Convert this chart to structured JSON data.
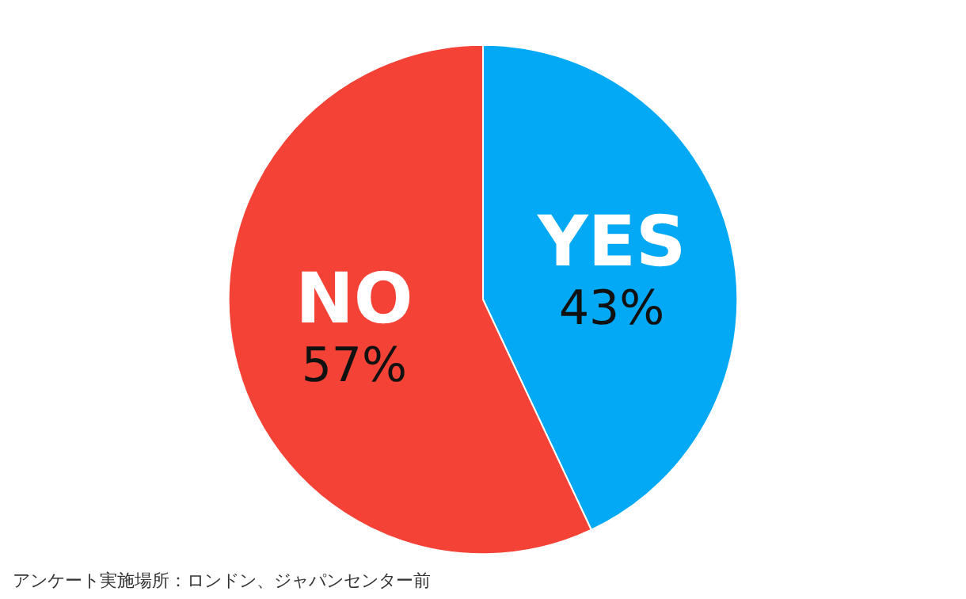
{
  "chart_data": {
    "type": "pie",
    "categories": [
      "YES",
      "NO"
    ],
    "values": [
      43,
      57
    ],
    "colors": [
      "#03a9f4",
      "#f44336"
    ],
    "value_labels": [
      "43%",
      "57%"
    ],
    "legend": false,
    "annotations": [
      "アンケート実施場所：ロンドン、ジャパンセンター前"
    ]
  }
}
